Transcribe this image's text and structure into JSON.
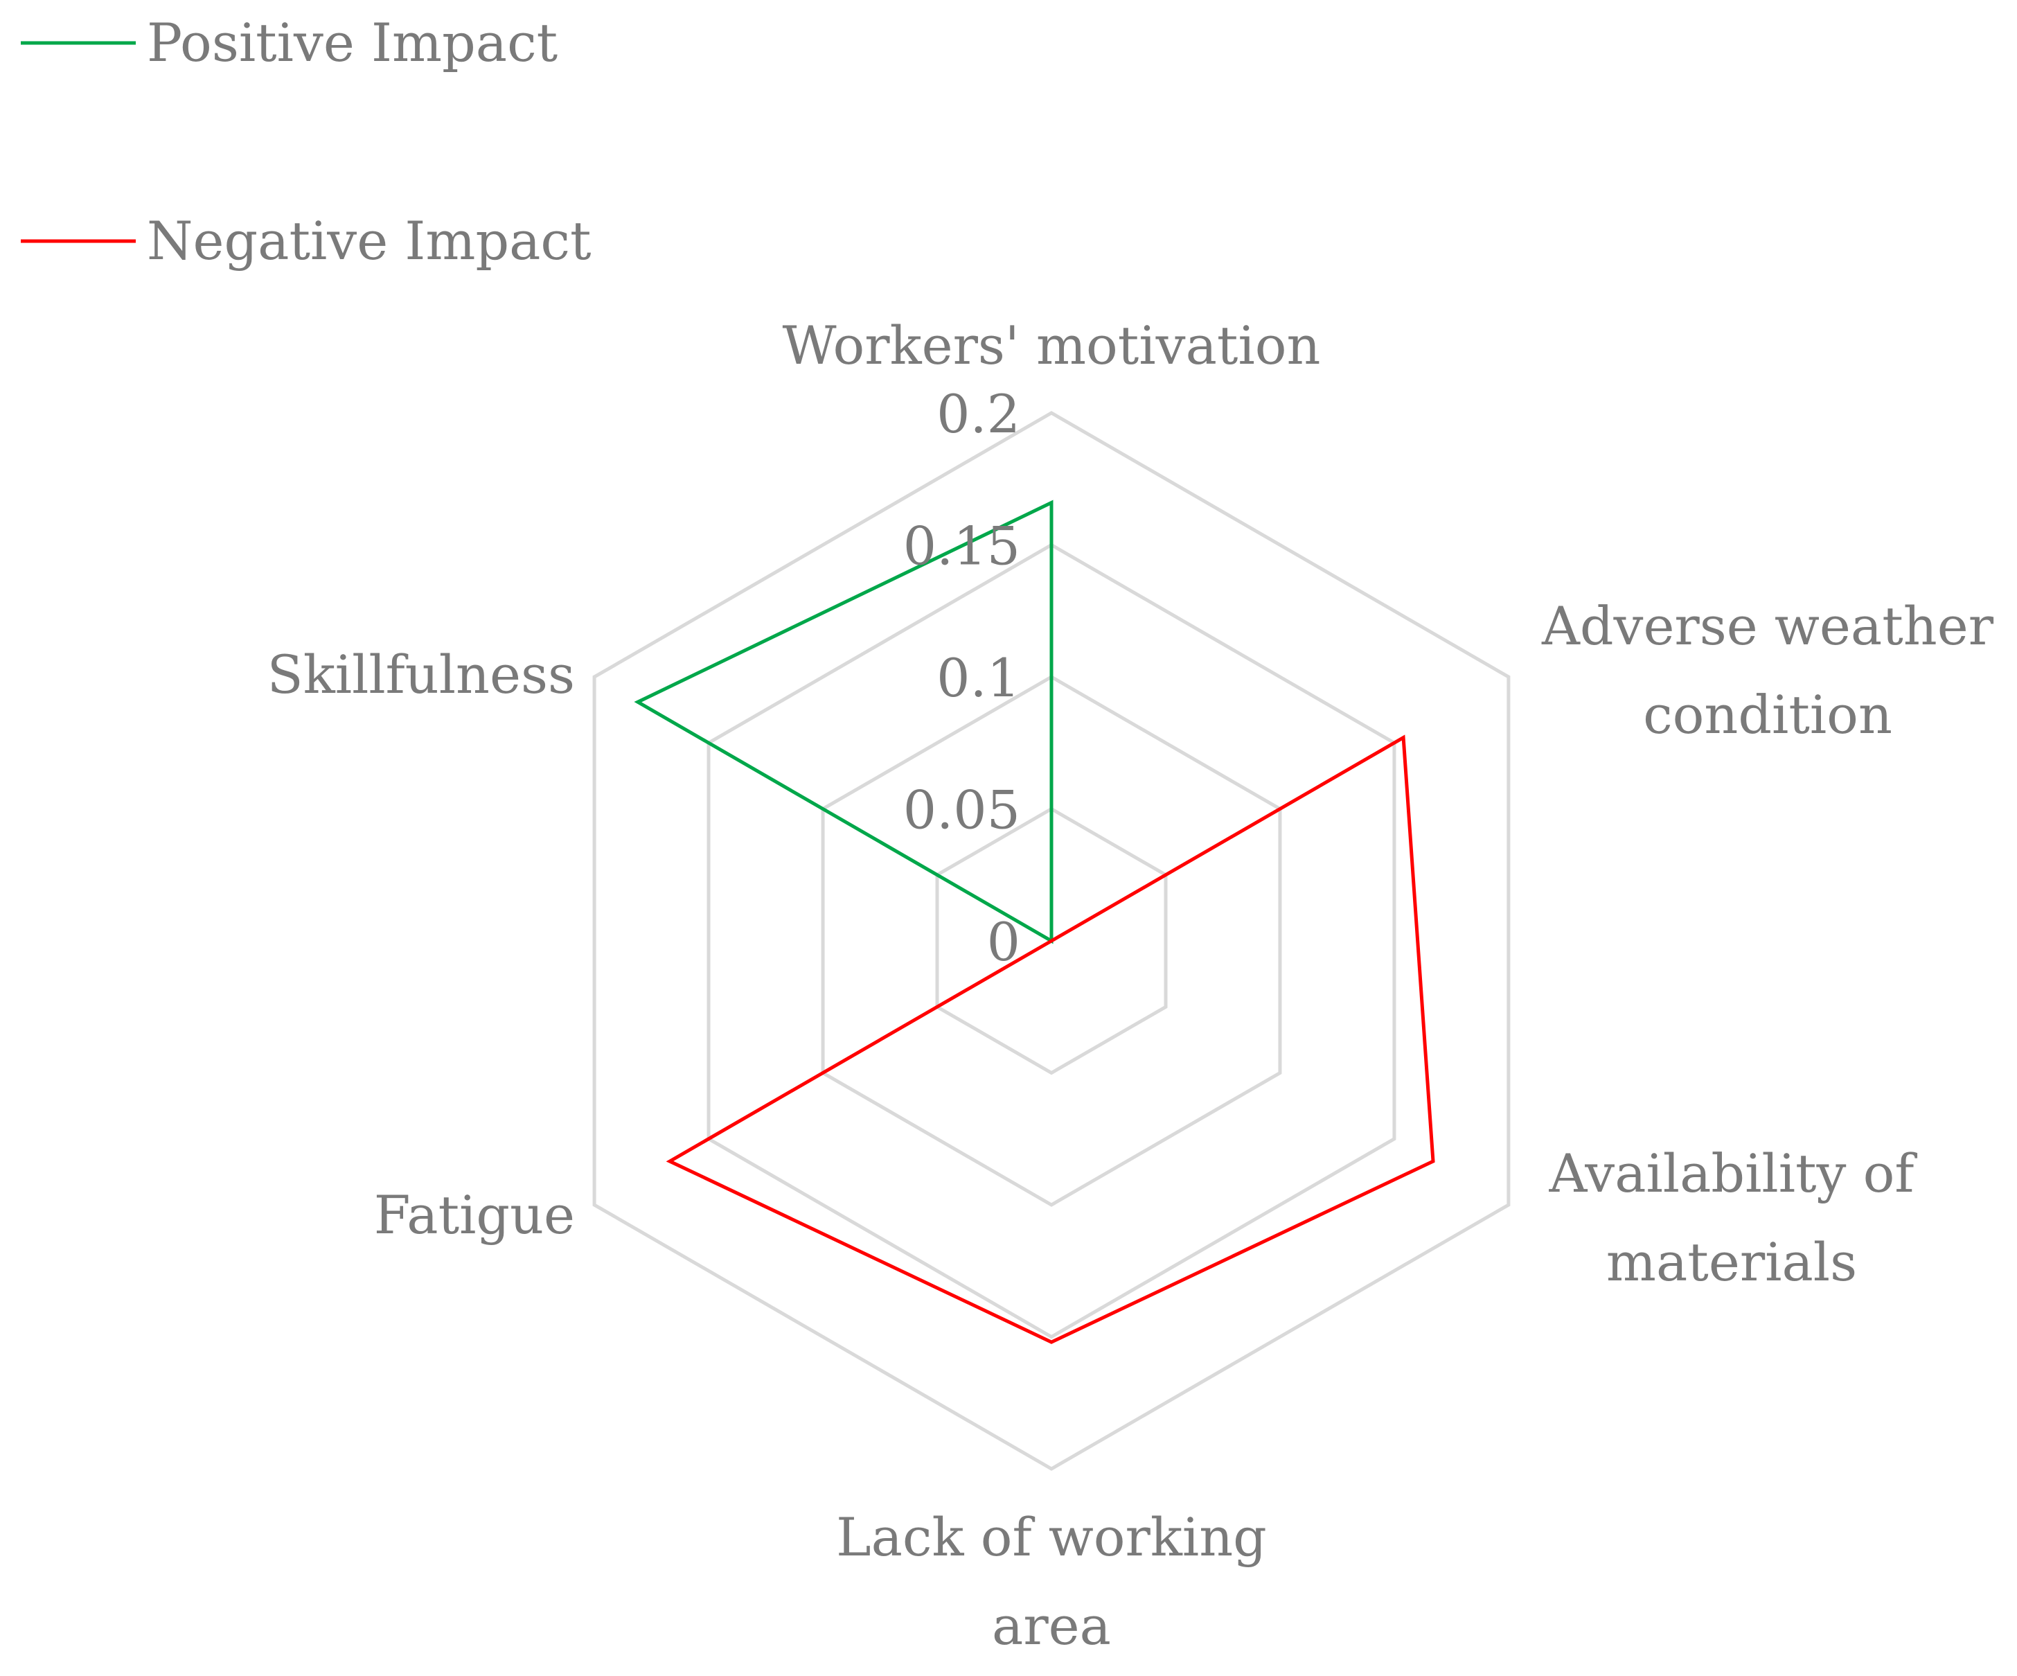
{
  "chart_data": {
    "type": "radar",
    "title": "",
    "categories": [
      "Workers' motivation",
      "Adverse weather condition",
      "Availability of materials",
      "Lack of working area",
      "Fatigue",
      "Skillfulness"
    ],
    "category_lines": [
      [
        "Workers' motivation"
      ],
      [
        "Adverse weather",
        "condition"
      ],
      [
        "Availability of",
        "materials"
      ],
      [
        "Lack of working",
        "area"
      ],
      [
        "Fatigue"
      ],
      [
        "Skillfulness"
      ]
    ],
    "radial_ticks": [
      "0",
      "0.05",
      "0.1",
      "0.15",
      "0.2"
    ],
    "rlim": [
      0,
      0.2
    ],
    "series": [
      {
        "name": "Positive Impact",
        "color": "#00a74a",
        "values": [
          0.166,
          0,
          0,
          0,
          0,
          0.181
        ]
      },
      {
        "name": "Negative Impact",
        "color": "#ff0000",
        "values": [
          0,
          0.154,
          0.167,
          0.152,
          0.167,
          0
        ]
      }
    ],
    "grid": true,
    "gridline_color": "#d9d9d9",
    "legend_position": "top-left"
  }
}
